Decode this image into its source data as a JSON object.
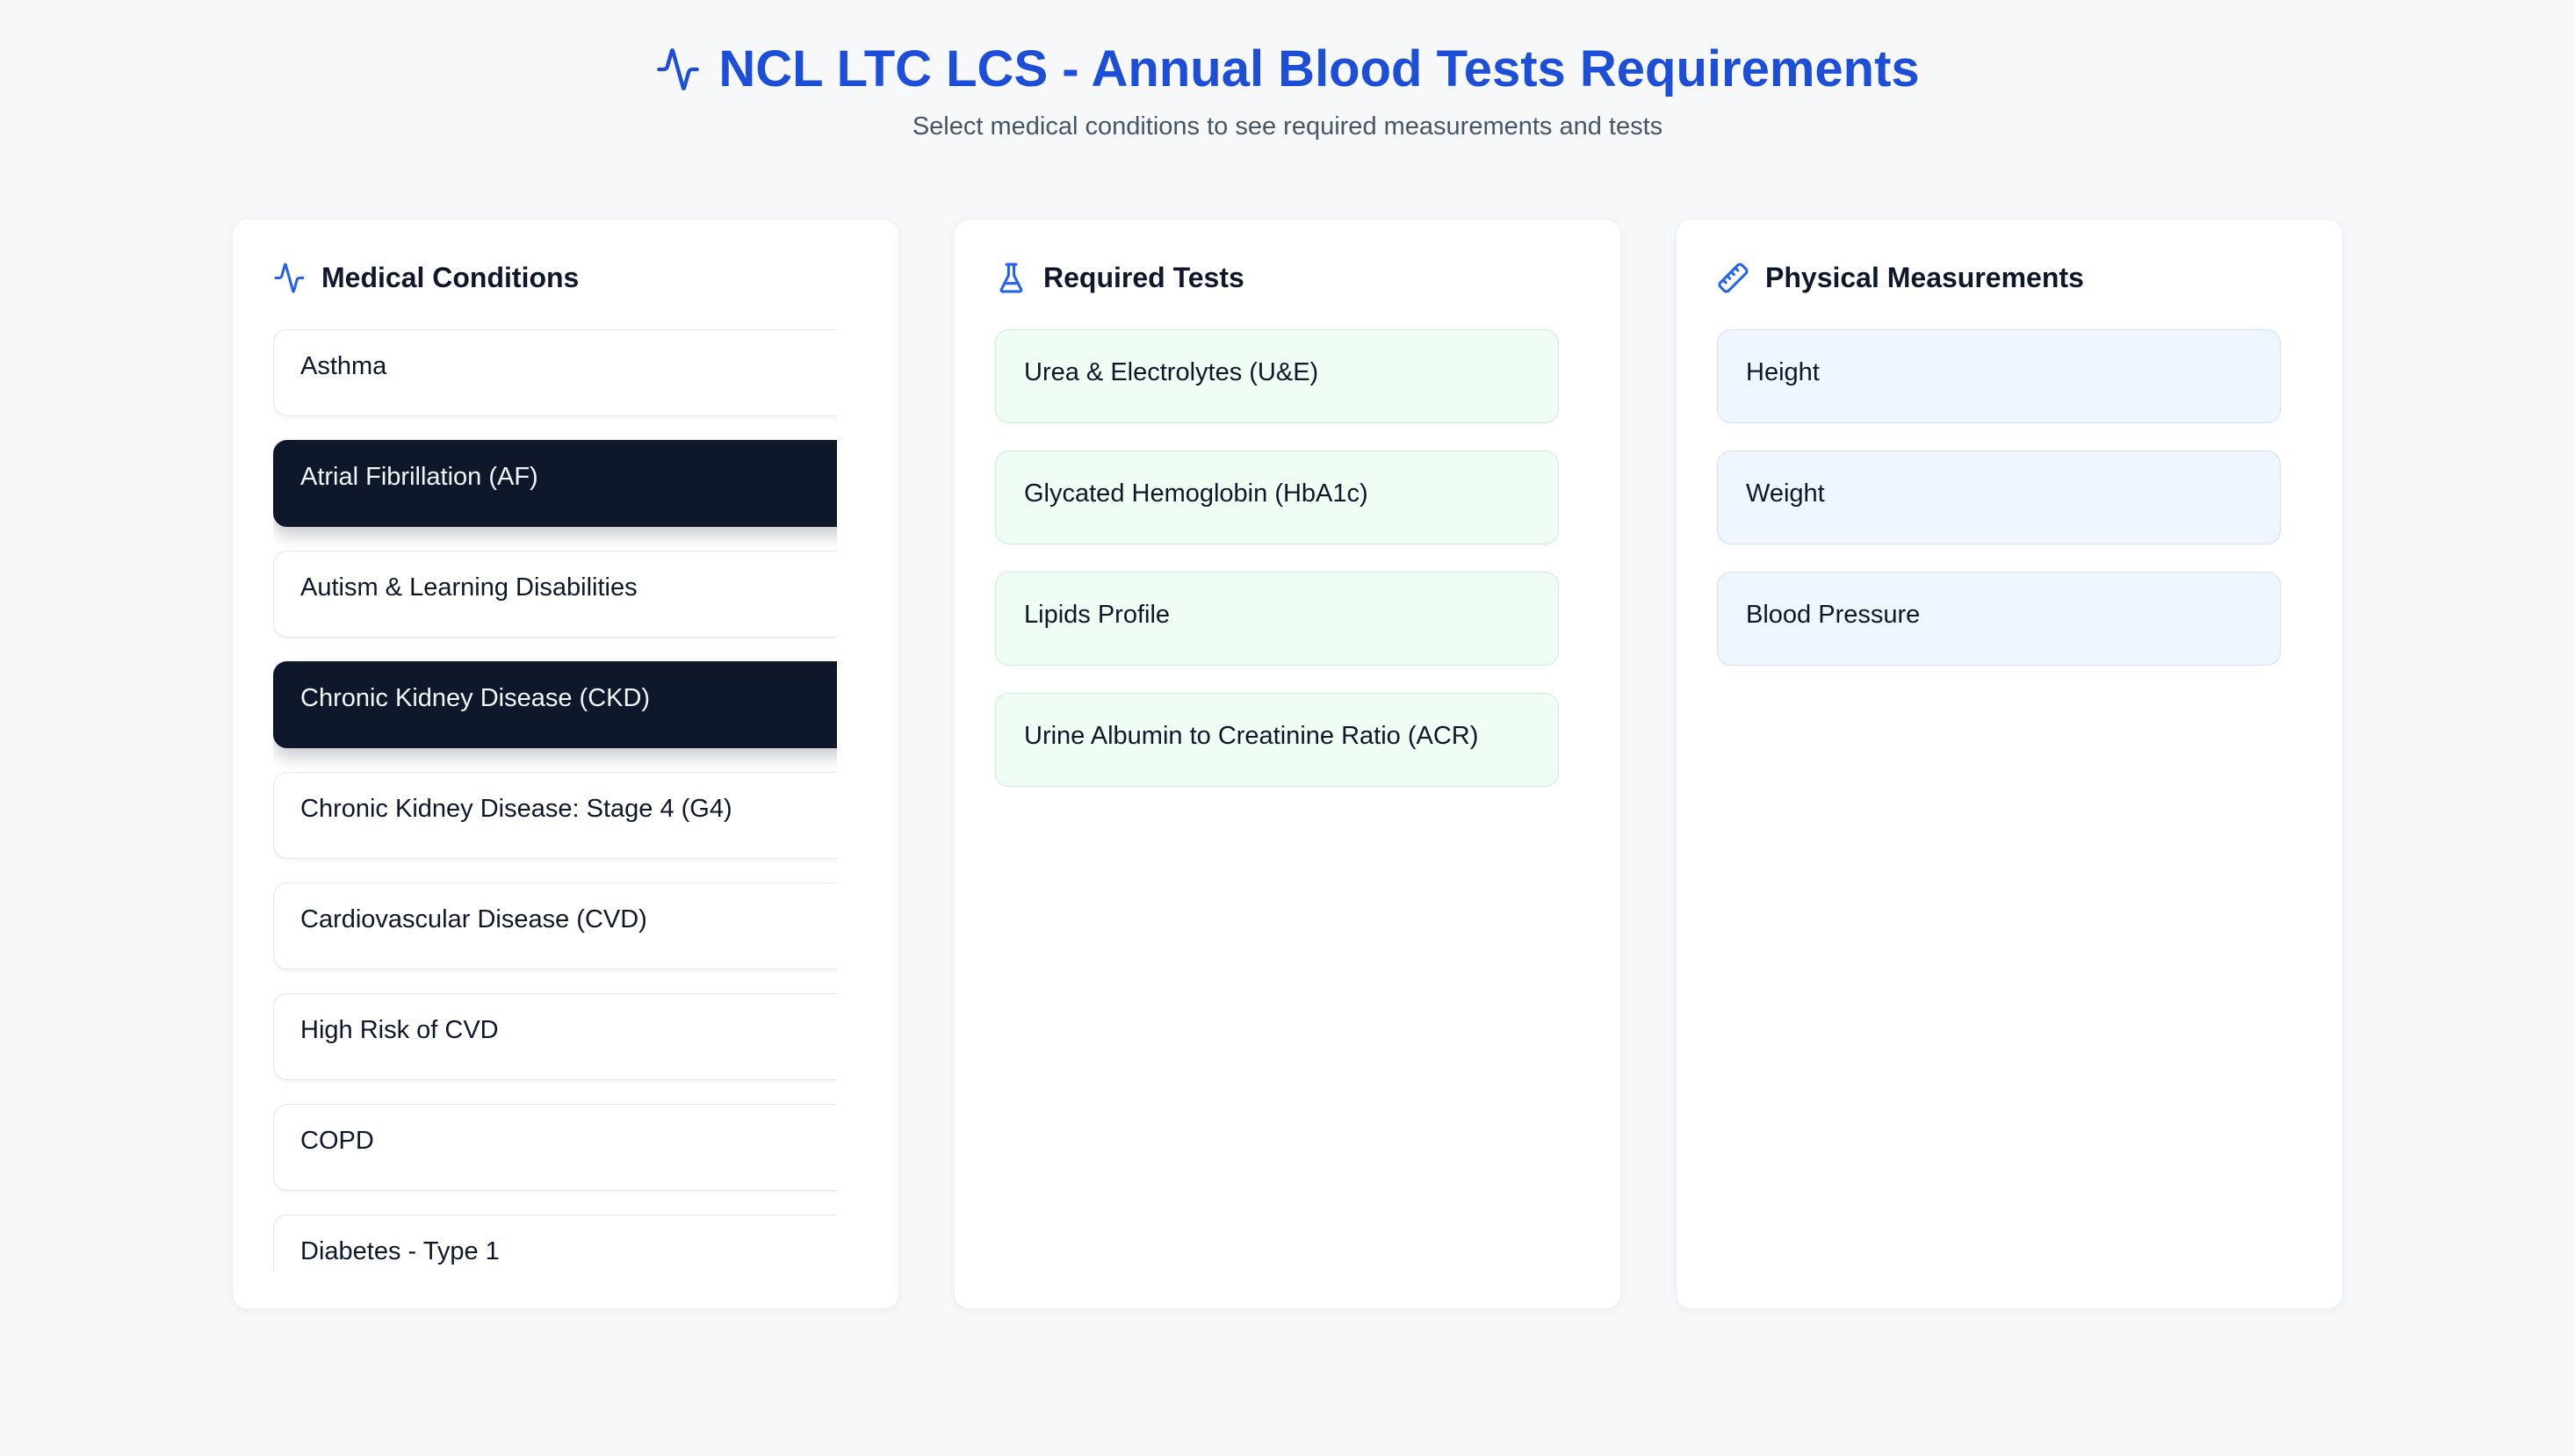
{
  "header": {
    "title": "NCL LTC LCS - Annual Blood Tests Requirements",
    "subtitle": "Select medical conditions to see required measurements and tests"
  },
  "panels": {
    "conditions": {
      "title": "Medical Conditions",
      "icon": "activity-icon",
      "items": [
        {
          "label": "Asthma",
          "selected": false
        },
        {
          "label": "Atrial Fibrillation (AF)",
          "selected": true
        },
        {
          "label": "Autism & Learning Disabilities",
          "selected": false
        },
        {
          "label": "Chronic Kidney Disease (CKD)",
          "selected": true
        },
        {
          "label": "Chronic Kidney Disease: Stage 4 (G4)",
          "selected": false
        },
        {
          "label": "Cardiovascular Disease (CVD)",
          "selected": false
        },
        {
          "label": "High Risk of CVD",
          "selected": false
        },
        {
          "label": "COPD",
          "selected": false
        },
        {
          "label": "Diabetes - Type 1",
          "selected": false
        }
      ]
    },
    "tests": {
      "title": "Required Tests",
      "icon": "flask-icon",
      "items": [
        "Urea & Electrolytes (U&E)",
        "Glycated Hemoglobin (HbA1c)",
        "Lipids Profile",
        "Urine Albumin to Creatinine Ratio (ACR)"
      ]
    },
    "measurements": {
      "title": "Physical Measurements",
      "icon": "ruler-icon",
      "items": [
        "Height",
        "Weight",
        "Blood Pressure"
      ]
    }
  },
  "colors": {
    "title_blue": "#1d4ed8",
    "icon_blue": "#2563eb",
    "selected_condition_bg": "#0f172a",
    "test_card_bg": "#f0fdf4",
    "test_card_border": "#c9efd8",
    "measurement_card_bg": "#eff6ff",
    "measurement_card_border": "#cfe0fa",
    "page_bg": "#f7f8fa"
  }
}
